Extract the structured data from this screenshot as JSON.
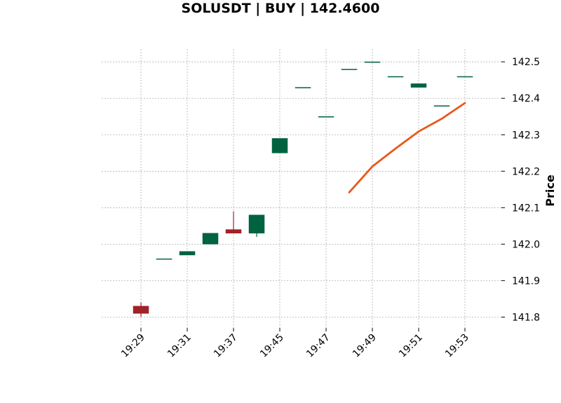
{
  "chart_data": {
    "type": "candlestick",
    "title": "SOLUSDT | BUY | 142.4600",
    "xlabel": "",
    "ylabel": "Price",
    "y_axis_side": "right",
    "grid": true,
    "ylim": [
      141.77,
      142.535
    ],
    "y_ticks": [
      141.8,
      141.9,
      142.0,
      142.1,
      142.2,
      142.3,
      142.4,
      142.5
    ],
    "x_tick_labels": [
      {
        "index": 0,
        "label": "19:29"
      },
      {
        "index": 2,
        "label": "19:31"
      },
      {
        "index": 4,
        "label": "19:37"
      },
      {
        "index": 6,
        "label": "19:45"
      },
      {
        "index": 8,
        "label": "19:47"
      },
      {
        "index": 10,
        "label": "19:49"
      },
      {
        "index": 12,
        "label": "19:51"
      },
      {
        "index": 14,
        "label": "19:53"
      }
    ],
    "candles": [
      {
        "open": 141.83,
        "high": 141.84,
        "low": 141.8,
        "close": 141.81
      },
      {
        "open": 141.96,
        "high": 141.96,
        "low": 141.96,
        "close": 141.96
      },
      {
        "open": 141.97,
        "high": 141.98,
        "low": 141.97,
        "close": 141.98
      },
      {
        "open": 142.0,
        "high": 142.03,
        "low": 142.0,
        "close": 142.03
      },
      {
        "open": 142.04,
        "high": 142.09,
        "low": 142.03,
        "close": 142.03
      },
      {
        "open": 142.03,
        "high": 142.08,
        "low": 142.02,
        "close": 142.08
      },
      {
        "open": 142.25,
        "high": 142.29,
        "low": 142.25,
        "close": 142.29
      },
      {
        "open": 142.43,
        "high": 142.43,
        "low": 142.43,
        "close": 142.43
      },
      {
        "open": 142.35,
        "high": 142.35,
        "low": 142.35,
        "close": 142.35
      },
      {
        "open": 142.48,
        "high": 142.48,
        "low": 142.48,
        "close": 142.48
      },
      {
        "open": 142.5,
        "high": 142.5,
        "low": 142.5,
        "close": 142.5
      },
      {
        "open": 142.46,
        "high": 142.46,
        "low": 142.46,
        "close": 142.46
      },
      {
        "open": 142.43,
        "high": 142.44,
        "low": 142.43,
        "close": 142.44
      },
      {
        "open": 142.38,
        "high": 142.38,
        "low": 142.38,
        "close": 142.38
      },
      {
        "open": 142.46,
        "high": 142.46,
        "low": 142.46,
        "close": 142.46
      }
    ],
    "overlay_line": {
      "start_index": 9,
      "values": [
        142.142,
        142.213,
        142.262,
        142.309,
        142.344,
        142.387
      ],
      "color": "#e8591a"
    },
    "colors": {
      "up": "#006340",
      "down": "#a02128",
      "grid": "#b0b0b0"
    }
  }
}
